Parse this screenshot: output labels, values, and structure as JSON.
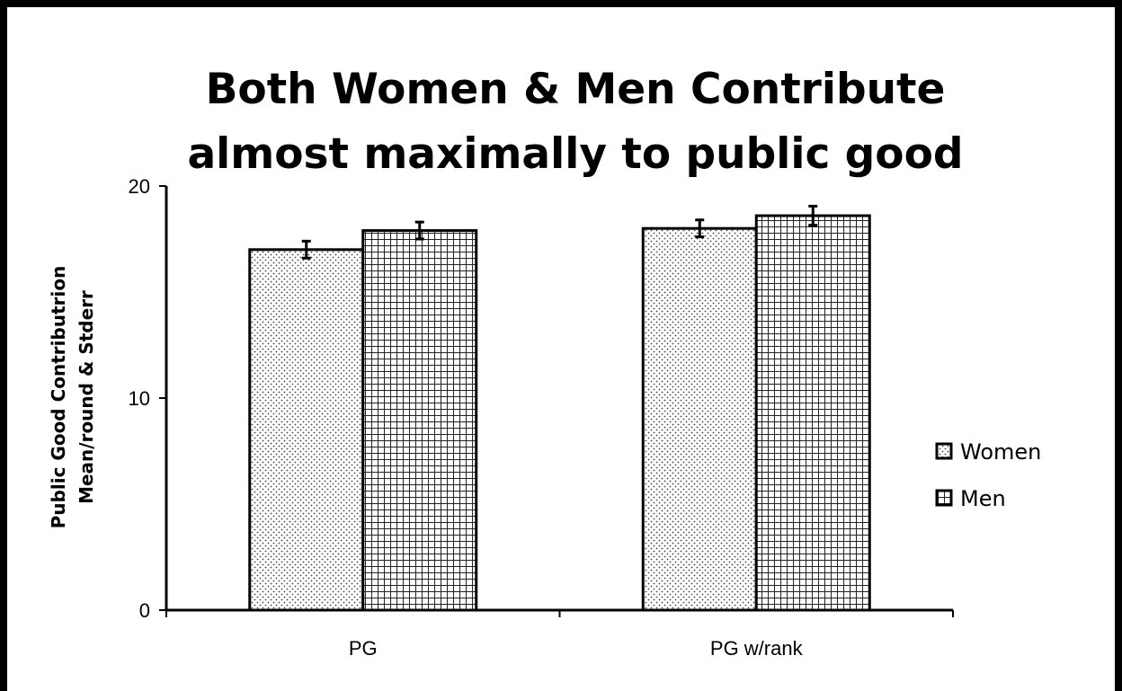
{
  "chart_data": {
    "type": "bar",
    "title_lines": [
      "Both Women & Men Contribute",
      "almost maximally to public good"
    ],
    "ylabel_lines": [
      "Public Good Contributrion",
      "Mean/round & Stderr"
    ],
    "xlabel": "",
    "categories": [
      "PG",
      "PG w/rank"
    ],
    "series": [
      {
        "name": "Women",
        "values": [
          17.0,
          18.0
        ],
        "errors": [
          0.4,
          0.4
        ],
        "pattern": "dots"
      },
      {
        "name": "Men",
        "values": [
          17.9,
          18.6
        ],
        "errors": [
          0.4,
          0.45
        ],
        "pattern": "grid"
      }
    ],
    "ylim": [
      0,
      20
    ],
    "yticks": [
      0,
      10,
      20
    ],
    "grid": false,
    "legend_position": "right"
  }
}
